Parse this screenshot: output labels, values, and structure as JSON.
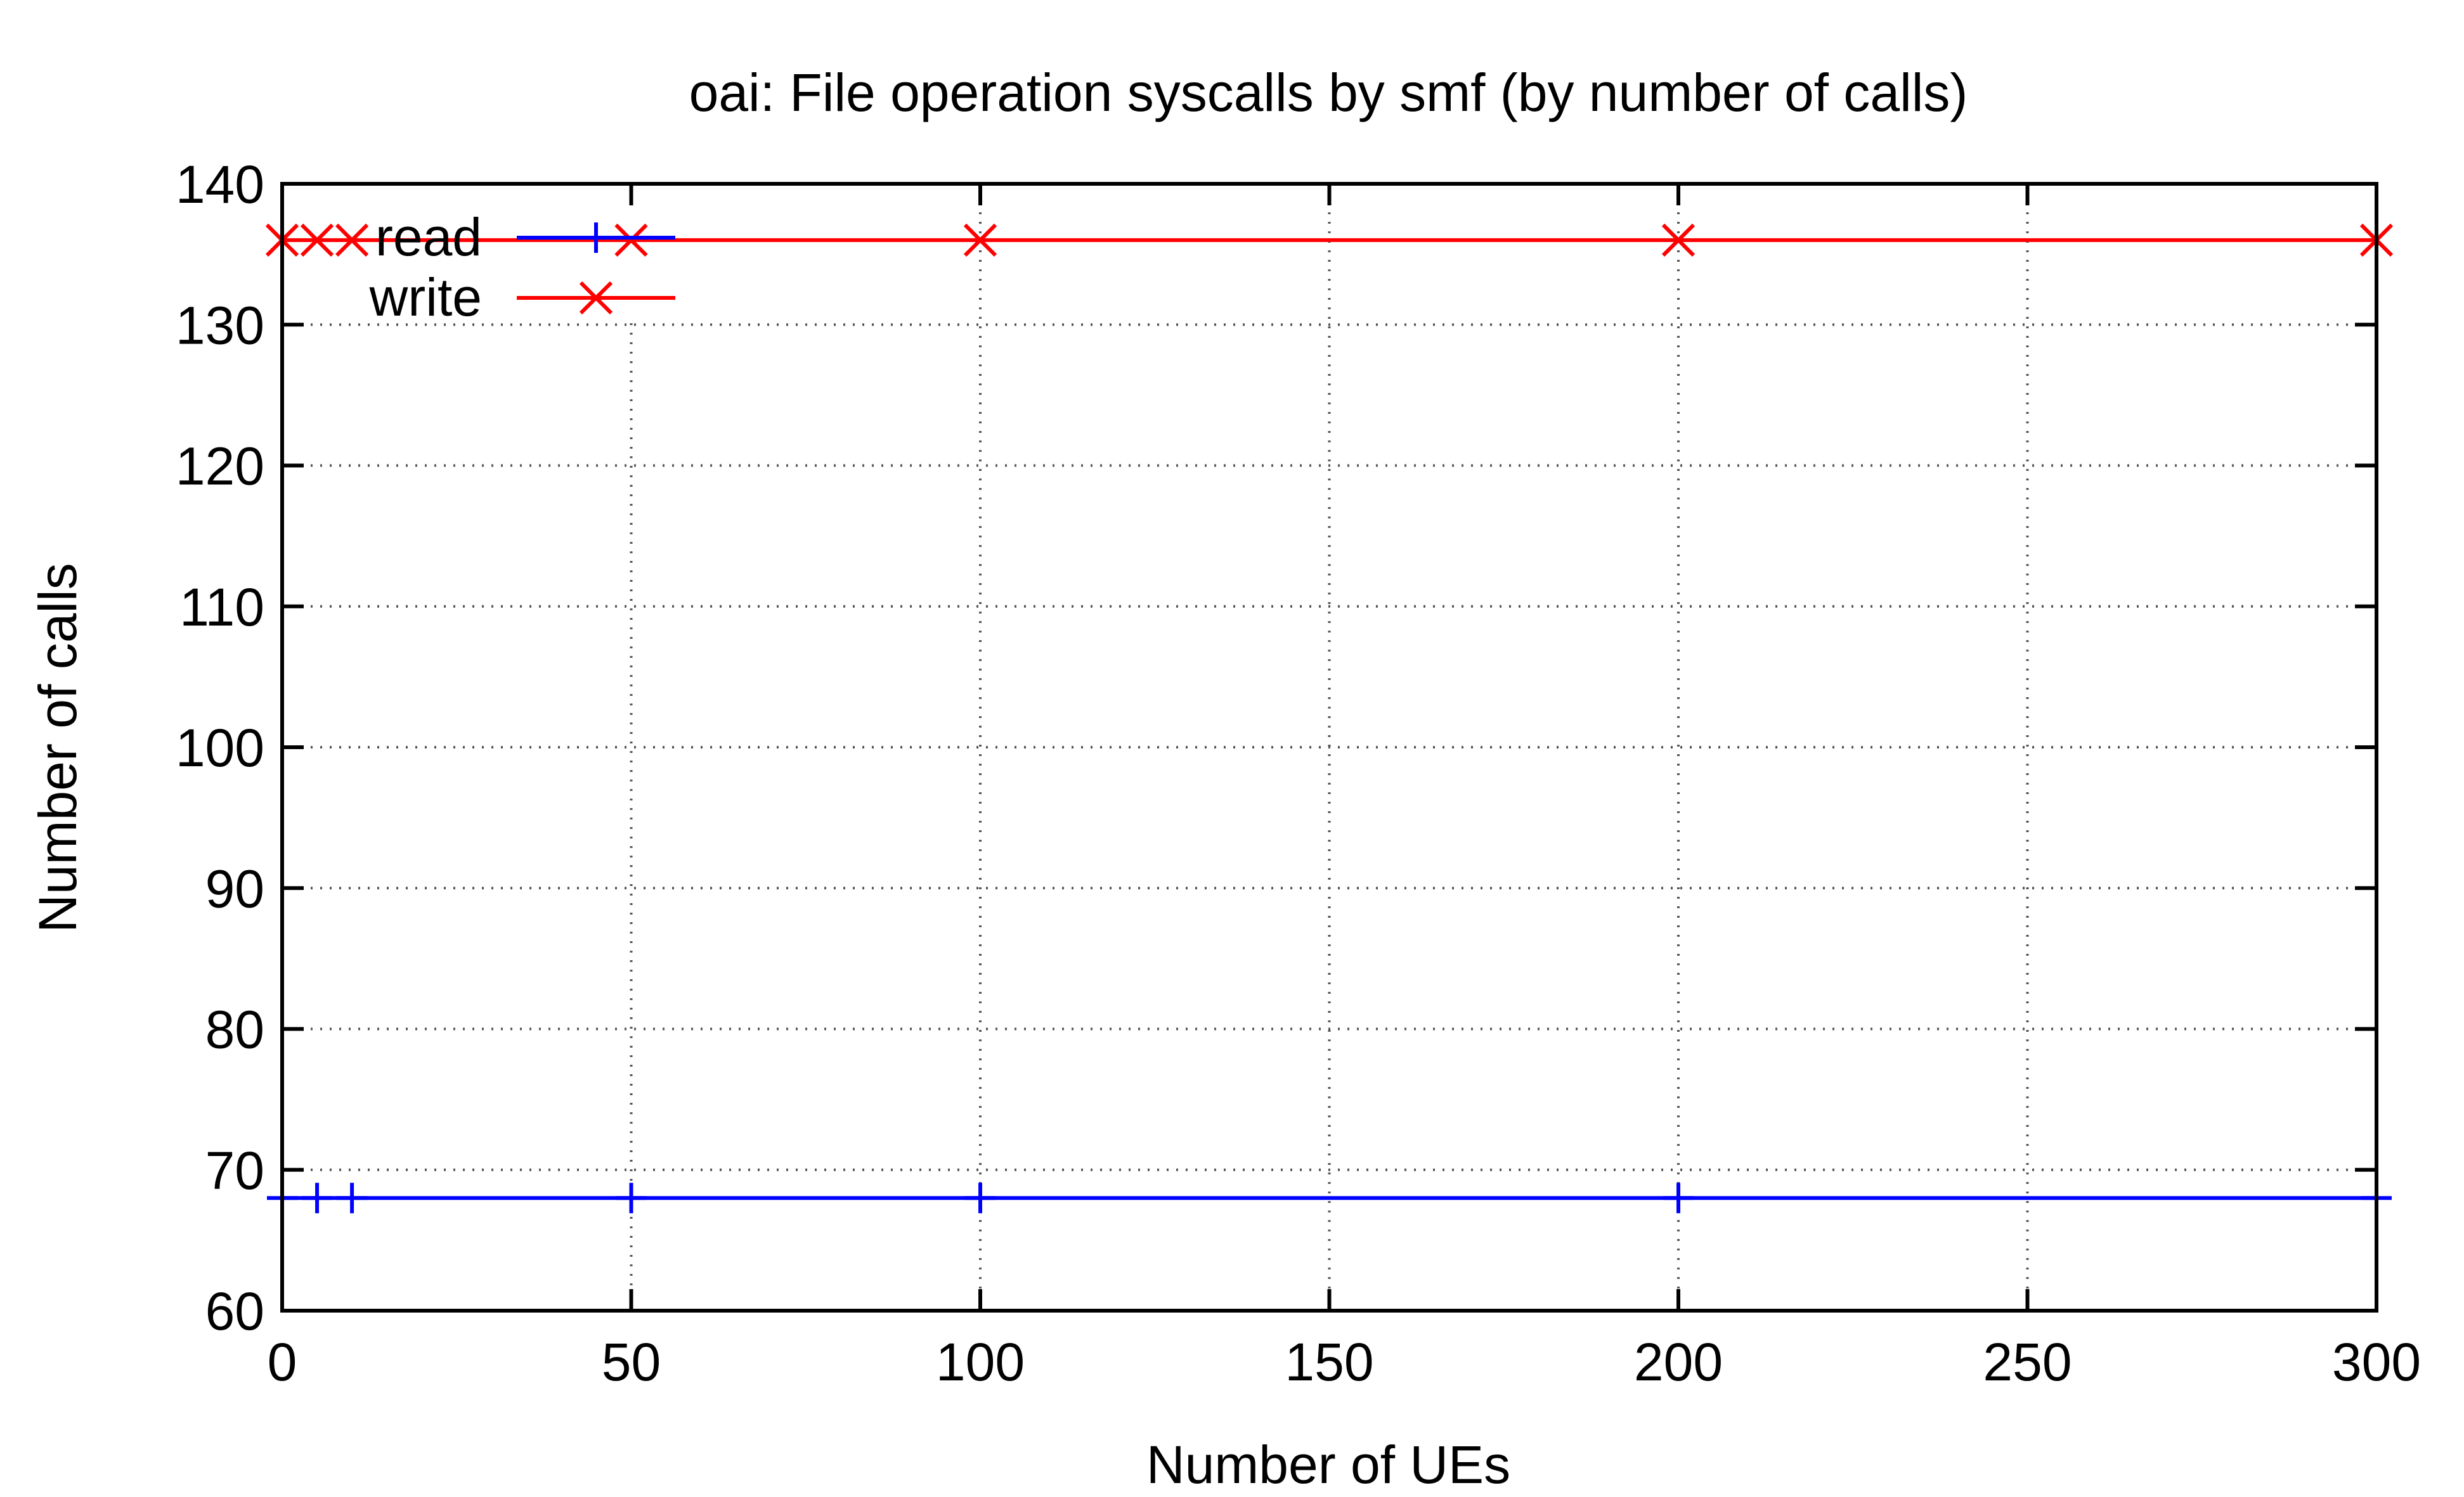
{
  "chart_data": {
    "type": "line",
    "title": "oai: File operation syscalls by smf (by number of calls)",
    "xlabel": "Number of UEs",
    "ylabel": "Number of calls",
    "xlim": [
      0,
      300
    ],
    "ylim": [
      60,
      140
    ],
    "xticks": [
      0,
      50,
      100,
      150,
      200,
      250,
      300
    ],
    "yticks": [
      60,
      70,
      80,
      90,
      100,
      110,
      120,
      130,
      140
    ],
    "x_tick_labels": [
      "0",
      "50",
      "100",
      "150",
      "200",
      "250",
      "300"
    ],
    "y_tick_labels": [
      "60",
      "70",
      "80",
      "90",
      "100",
      "110",
      "120",
      "130",
      "140"
    ],
    "grid": true,
    "legend_position": "top-left",
    "series": [
      {
        "name": "read",
        "color": "#0000ff",
        "marker": "plus",
        "x": [
          0,
          5,
          10,
          50,
          100,
          200,
          300
        ],
        "y": [
          68,
          68,
          68,
          68,
          68,
          68,
          68
        ]
      },
      {
        "name": "write",
        "color": "#ff0000",
        "marker": "cross",
        "x": [
          0,
          5,
          10,
          50,
          100,
          200,
          300
        ],
        "y": [
          136,
          136,
          136,
          136,
          136,
          136,
          136
        ]
      }
    ]
  }
}
